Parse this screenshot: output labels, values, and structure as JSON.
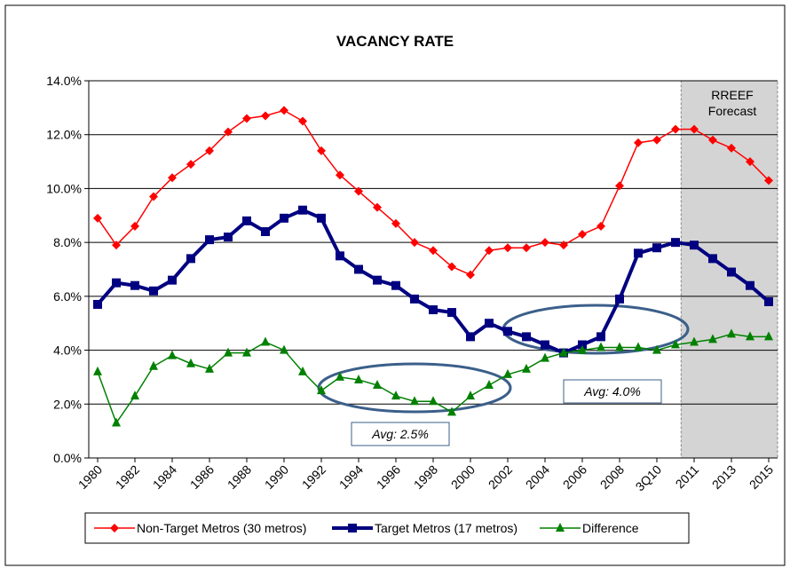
{
  "chart_data": {
    "type": "line",
    "title": "VACANCY RATE",
    "categories": [
      "1980",
      null,
      "1982",
      null,
      "1984",
      null,
      "1986",
      null,
      "1988",
      null,
      "1990",
      null,
      "1992",
      null,
      "1994",
      null,
      "1996",
      null,
      "1998",
      null,
      "2000",
      null,
      "2002",
      null,
      "2004",
      null,
      "2006",
      null,
      "2008",
      null,
      "3Q10",
      null,
      "2011",
      null,
      "2013",
      null,
      "2015"
    ],
    "series": [
      {
        "name": "Non-Target Metros (30 metros)",
        "color": "#ff0000",
        "marker": "diamond",
        "values": [
          8.9,
          7.9,
          8.6,
          9.7,
          10.4,
          10.9,
          11.4,
          12.1,
          12.6,
          12.7,
          12.9,
          12.5,
          11.4,
          10.5,
          9.9,
          9.3,
          8.7,
          8.0,
          7.7,
          7.1,
          6.8,
          7.7,
          7.8,
          7.8,
          8.0,
          7.9,
          8.3,
          8.6,
          10.1,
          11.7,
          11.8,
          12.2,
          12.2,
          11.8,
          11.5,
          11.0,
          10.3
        ]
      },
      {
        "name": "Target Metros (17 metros)",
        "color": "#000080",
        "marker": "square",
        "values": [
          5.7,
          6.5,
          6.4,
          6.2,
          6.6,
          7.4,
          8.1,
          8.2,
          8.8,
          8.4,
          8.9,
          9.2,
          8.9,
          7.5,
          7.0,
          6.6,
          6.4,
          5.9,
          5.5,
          5.4,
          4.5,
          5.0,
          4.7,
          4.5,
          4.2,
          3.9,
          4.2,
          4.5,
          5.9,
          7.6,
          7.8,
          8.0,
          7.9,
          7.4,
          6.9,
          6.4,
          5.8
        ]
      },
      {
        "name": "Difference",
        "color": "#008000",
        "marker": "triangle",
        "values": [
          3.2,
          1.3,
          2.3,
          3.4,
          3.8,
          3.5,
          3.3,
          3.9,
          3.9,
          4.3,
          4.0,
          3.2,
          2.5,
          3.0,
          2.9,
          2.7,
          2.3,
          2.1,
          2.1,
          1.7,
          2.3,
          2.7,
          3.1,
          3.3,
          3.7,
          3.9,
          4.0,
          4.1,
          4.1,
          4.1,
          4.0,
          4.2,
          4.3,
          4.4,
          4.6,
          4.5,
          4.5
        ]
      }
    ],
    "ylim": [
      0,
      14
    ],
    "yticks": [
      {
        "value": 0,
        "label": "0.0%"
      },
      {
        "value": 2,
        "label": "2.0%"
      },
      {
        "value": 4,
        "label": "4.0%"
      },
      {
        "value": 6,
        "label": "6.0%"
      },
      {
        "value": 8,
        "label": "8.0%"
      },
      {
        "value": 10,
        "label": "10.0%"
      },
      {
        "value": 12,
        "label": "12.0%"
      },
      {
        "value": 14,
        "label": "14.0%"
      }
    ],
    "grid": true,
    "annotations": {
      "forecast": [
        "RREEF",
        "Forecast"
      ],
      "avg1": "Avg: 2.5%",
      "avg2": "Avg: 4.0%"
    },
    "legend": "bottom"
  }
}
